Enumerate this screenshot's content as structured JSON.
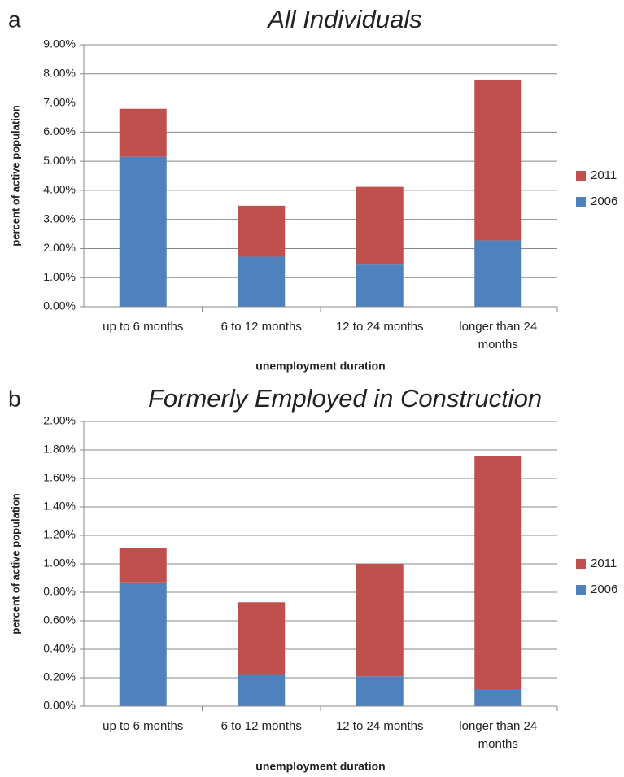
{
  "chart_data": [
    {
      "type": "stacked_bar",
      "panel_label": "a",
      "title": "All Individuals",
      "y_label": "percent of active population",
      "x_label": "unemployment duration",
      "categories": [
        "up to 6 months",
        "6 to 12 months",
        "12 to 24 months",
        "longer than 24 months"
      ],
      "series": [
        {
          "name": "2006",
          "color": "#4f81bd",
          "values": [
            5.15,
            1.72,
            1.45,
            2.28
          ]
        },
        {
          "name": "2011",
          "color": "#c0504d",
          "values": [
            1.65,
            1.75,
            2.67,
            5.52
          ]
        }
      ],
      "ylim": [
        0,
        9
      ],
      "yticks": [
        {
          "value": 0,
          "label": "0.00%"
        },
        {
          "value": 1,
          "label": "1.00%"
        },
        {
          "value": 2,
          "label": "2.00%"
        },
        {
          "value": 3,
          "label": "3.00%"
        },
        {
          "value": 4,
          "label": "4.00%"
        },
        {
          "value": 5,
          "label": "5.00%"
        },
        {
          "value": 6,
          "label": "6.00%"
        },
        {
          "value": 7,
          "label": "7.00%"
        },
        {
          "value": 8,
          "label": "8.00%"
        },
        {
          "value": 9,
          "label": "9.00%"
        }
      ],
      "grid": true,
      "legend": "right"
    },
    {
      "type": "stacked_bar",
      "panel_label": "b",
      "title": "Formerly Employed in Construction",
      "y_label": "percent of active population",
      "x_label": "unemployment duration",
      "categories": [
        "up to 6 months",
        "6 to 12 months",
        "12 to 24 months",
        "longer than 24 months"
      ],
      "series": [
        {
          "name": "2006",
          "color": "#4f81bd",
          "values": [
            0.87,
            0.22,
            0.21,
            0.12
          ]
        },
        {
          "name": "2011",
          "color": "#c0504d",
          "values": [
            0.24,
            0.51,
            0.79,
            1.64
          ]
        }
      ],
      "ylim": [
        0,
        2
      ],
      "yticks": [
        {
          "value": 0,
          "label": "0.00%"
        },
        {
          "value": 0.2,
          "label": "0.20%"
        },
        {
          "value": 0.4,
          "label": "0.40%"
        },
        {
          "value": 0.6,
          "label": "0.60%"
        },
        {
          "value": 0.8,
          "label": "0.80%"
        },
        {
          "value": 1,
          "label": "1.00%"
        },
        {
          "value": 1.2,
          "label": "1.20%"
        },
        {
          "value": 1.4,
          "label": "1.40%"
        },
        {
          "value": 1.6,
          "label": "1.60%"
        },
        {
          "value": 1.8,
          "label": "1.80%"
        },
        {
          "value": 2,
          "label": "2.00%"
        }
      ],
      "grid": true,
      "legend": "right"
    }
  ]
}
